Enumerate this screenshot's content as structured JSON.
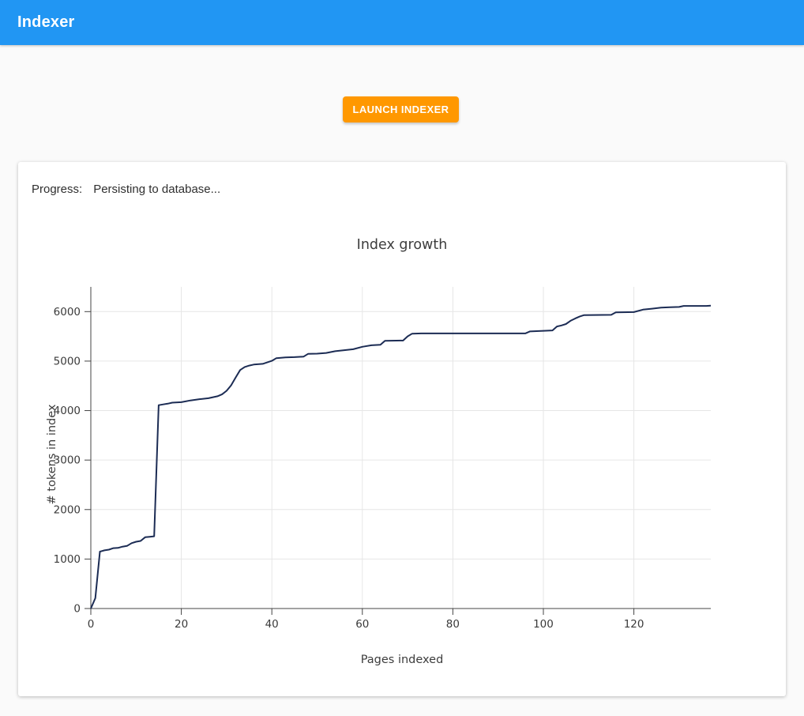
{
  "app": {
    "title": "Indexer"
  },
  "toolbar": {
    "launch_label": "LAUNCH INDEXER"
  },
  "progress": {
    "label": "Progress:",
    "status": "Persisting to database..."
  },
  "colors": {
    "header_bg": "#2196F3",
    "button_bg": "#FF9800",
    "page_bg": "#FAFAFA",
    "card_bg": "#FFFFFF",
    "line": "#1C2C54",
    "grid": "#E6E6E6",
    "axis": "#444444",
    "tick_text": "#3A3A3A"
  },
  "chart_data": {
    "type": "line",
    "title": "Index growth",
    "xlabel": "Pages indexed",
    "ylabel": "# tokens in index",
    "xlim": [
      0,
      137
    ],
    "ylim": [
      0,
      6500
    ],
    "xticks": [
      0,
      20,
      40,
      60,
      80,
      100,
      120
    ],
    "yticks": [
      0,
      1000,
      2000,
      3000,
      4000,
      5000,
      6000
    ],
    "grid": true,
    "legend": "none",
    "series": [
      {
        "name": "tokens in index",
        "points": [
          [
            0,
            0
          ],
          [
            1,
            210
          ],
          [
            2,
            1150
          ],
          [
            3,
            1175
          ],
          [
            4,
            1190
          ],
          [
            5,
            1220
          ],
          [
            6,
            1225
          ],
          [
            7,
            1250
          ],
          [
            8,
            1265
          ],
          [
            9,
            1320
          ],
          [
            10,
            1350
          ],
          [
            11,
            1365
          ],
          [
            12,
            1440
          ],
          [
            13,
            1450
          ],
          [
            14,
            1460
          ],
          [
            15,
            4110
          ],
          [
            16,
            4125
          ],
          [
            17,
            4140
          ],
          [
            18,
            4160
          ],
          [
            20,
            4170
          ],
          [
            22,
            4205
          ],
          [
            24,
            4230
          ],
          [
            26,
            4250
          ],
          [
            28,
            4290
          ],
          [
            29,
            4330
          ],
          [
            30,
            4400
          ],
          [
            31,
            4510
          ],
          [
            32,
            4670
          ],
          [
            33,
            4820
          ],
          [
            34,
            4880
          ],
          [
            35,
            4910
          ],
          [
            36,
            4930
          ],
          [
            38,
            4945
          ],
          [
            40,
            5005
          ],
          [
            41,
            5060
          ],
          [
            43,
            5075
          ],
          [
            45,
            5080
          ],
          [
            47,
            5090
          ],
          [
            48,
            5145
          ],
          [
            50,
            5150
          ],
          [
            52,
            5165
          ],
          [
            54,
            5200
          ],
          [
            56,
            5220
          ],
          [
            58,
            5240
          ],
          [
            60,
            5290
          ],
          [
            62,
            5320
          ],
          [
            64,
            5330
          ],
          [
            65,
            5410
          ],
          [
            69,
            5415
          ],
          [
            70,
            5500
          ],
          [
            71,
            5555
          ],
          [
            73,
            5560
          ],
          [
            96,
            5560
          ],
          [
            97,
            5600
          ],
          [
            102,
            5620
          ],
          [
            103,
            5700
          ],
          [
            104,
            5720
          ],
          [
            105,
            5750
          ],
          [
            106,
            5815
          ],
          [
            107,
            5860
          ],
          [
            108,
            5900
          ],
          [
            109,
            5930
          ],
          [
            115,
            5935
          ],
          [
            116,
            5985
          ],
          [
            120,
            5990
          ],
          [
            122,
            6040
          ],
          [
            124,
            6060
          ],
          [
            126,
            6080
          ],
          [
            128,
            6090
          ],
          [
            130,
            6095
          ],
          [
            131,
            6115
          ],
          [
            136,
            6115
          ],
          [
            137,
            6120
          ]
        ]
      }
    ]
  }
}
